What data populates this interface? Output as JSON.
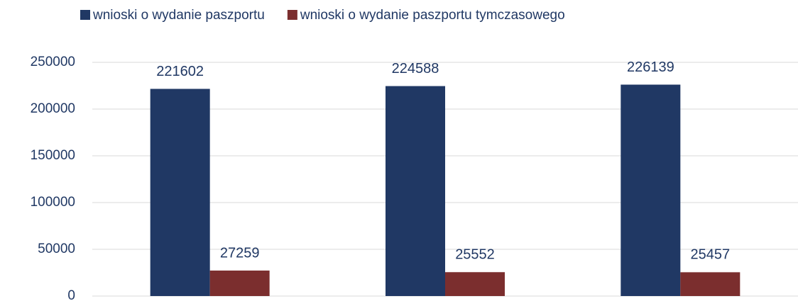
{
  "chart_data": {
    "type": "bar",
    "categories": [
      null,
      null,
      null
    ],
    "series": [
      {
        "name": "wnioski o wydanie paszportu",
        "color": "#203864",
        "values": [
          221602,
          224588,
          226139
        ]
      },
      {
        "name": "wnioski o wydanie paszportu tymczasowego",
        "color": "#7b2e2e",
        "values": [
          27259,
          25552,
          25457
        ]
      }
    ],
    "ylim": [
      0,
      250000
    ],
    "yticks": [
      0,
      50000,
      100000,
      150000,
      200000,
      250000
    ],
    "grid": true,
    "legend": "top",
    "data_labels": true
  }
}
